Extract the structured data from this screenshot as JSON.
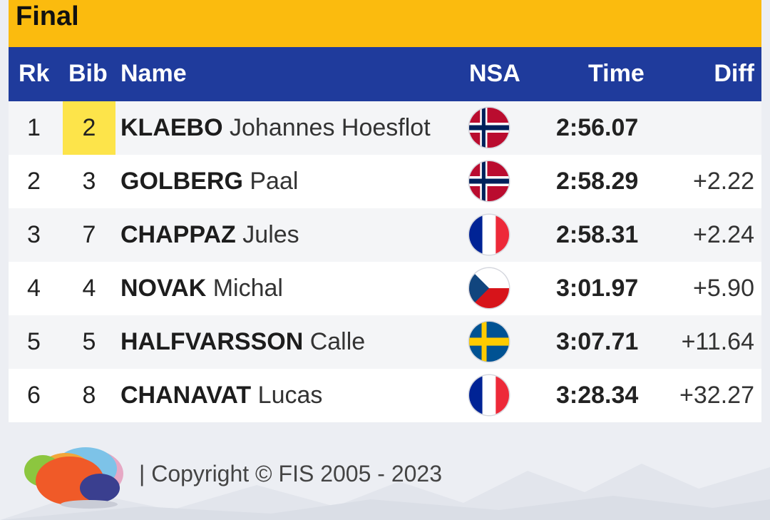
{
  "header": {
    "title": "Final"
  },
  "columns": {
    "rk": "Rk",
    "bib": "Bib",
    "name": "Name",
    "nsa": "NSA",
    "time": "Time",
    "diff": "Diff"
  },
  "results": [
    {
      "rk": "1",
      "bib": "2",
      "surname": "KLAEBO",
      "given": "Johannes Hoesflot",
      "nsa": "norway-flag-icon",
      "time": "2:56.07",
      "diff": ""
    },
    {
      "rk": "2",
      "bib": "3",
      "surname": "GOLBERG",
      "given": "Paal",
      "nsa": "norway-flag-icon",
      "time": "2:58.29",
      "diff": "+2.22"
    },
    {
      "rk": "3",
      "bib": "7",
      "surname": "CHAPPAZ",
      "given": "Jules",
      "nsa": "france-flag-icon",
      "time": "2:58.31",
      "diff": "+2.24"
    },
    {
      "rk": "4",
      "bib": "4",
      "surname": "NOVAK",
      "given": "Michal",
      "nsa": "czech-flag-icon",
      "time": "3:01.97",
      "diff": "+5.90"
    },
    {
      "rk": "5",
      "bib": "5",
      "surname": "HALFVARSSON",
      "given": "Calle",
      "nsa": "sweden-flag-icon",
      "time": "3:07.71",
      "diff": "+11.64"
    },
    {
      "rk": "6",
      "bib": "8",
      "surname": "CHANAVAT",
      "given": "Lucas",
      "nsa": "france-flag-icon",
      "time": "3:28.34",
      "diff": "+32.27"
    }
  ],
  "footer": {
    "copyright": "| Copyright © FIS 2005 - 2023",
    "logo": "fis-logo-icon"
  },
  "colors": {
    "header": "#fbbb0e",
    "column_bar": "#1f3b9c",
    "bib_highlight": "#fde44a"
  }
}
